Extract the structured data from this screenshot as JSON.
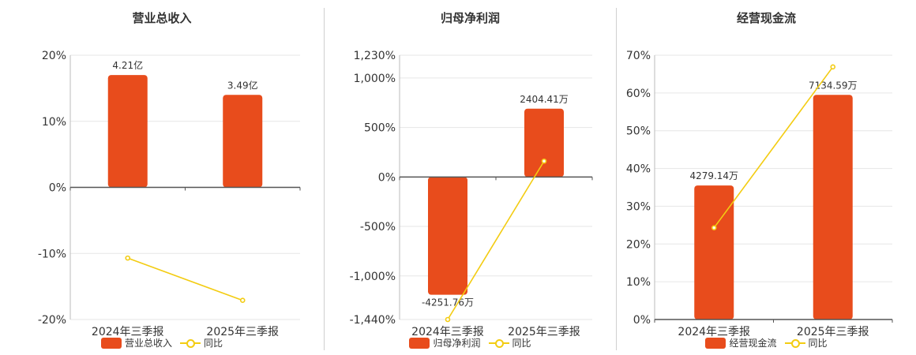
{
  "colors": {
    "bar": "#e84c1c",
    "line": "#f3cc12",
    "grid": "#e6e6e6",
    "axis": "#555555",
    "text": "#333333"
  },
  "chart_data": [
    {
      "type": "bar",
      "title": "营业总收入",
      "categories": [
        "2024年三季报",
        "2025年三季报"
      ],
      "yticks": [
        "20%",
        "10%",
        "0%",
        "-10%",
        "-20%"
      ],
      "ylim": [
        -20,
        20
      ],
      "series": [
        {
          "name": "营业总收入",
          "kind": "bar",
          "values": [
            17,
            14
          ],
          "labels": [
            "4.21亿",
            "3.49亿"
          ]
        },
        {
          "name": "同比",
          "kind": "line",
          "values": [
            -10.7,
            -17.1
          ]
        }
      ],
      "legend_position": "bottom"
    },
    {
      "type": "bar",
      "title": "归母净利润",
      "categories": [
        "2024年三季报",
        "2025年三季报"
      ],
      "yticks": [
        "1,230%",
        "1,000%",
        "500%",
        "0%",
        "-500%",
        "-1,000%",
        "-1,440%"
      ],
      "ylim": [
        -1440,
        1230
      ],
      "series": [
        {
          "name": "归母净利润",
          "kind": "bar",
          "values": [
            -1190,
            690
          ],
          "labels": [
            "-4251.76万",
            "2404.41万"
          ]
        },
        {
          "name": "同比",
          "kind": "line",
          "values": [
            -1440,
            160
          ]
        }
      ],
      "legend_position": "bottom"
    },
    {
      "type": "bar",
      "title": "经营现金流",
      "categories": [
        "2024年三季报",
        "2025年三季报"
      ],
      "yticks": [
        "70%",
        "60%",
        "50%",
        "40%",
        "30%",
        "20%",
        "10%",
        "0%"
      ],
      "ylim": [
        0,
        70
      ],
      "series": [
        {
          "name": "经营现金流",
          "kind": "bar",
          "values": [
            35.5,
            59.5
          ],
          "labels": [
            "4279.14万",
            "7134.59万"
          ]
        },
        {
          "name": "同比",
          "kind": "line",
          "values": [
            24.3,
            66.9
          ]
        }
      ],
      "legend_position": "bottom"
    }
  ]
}
